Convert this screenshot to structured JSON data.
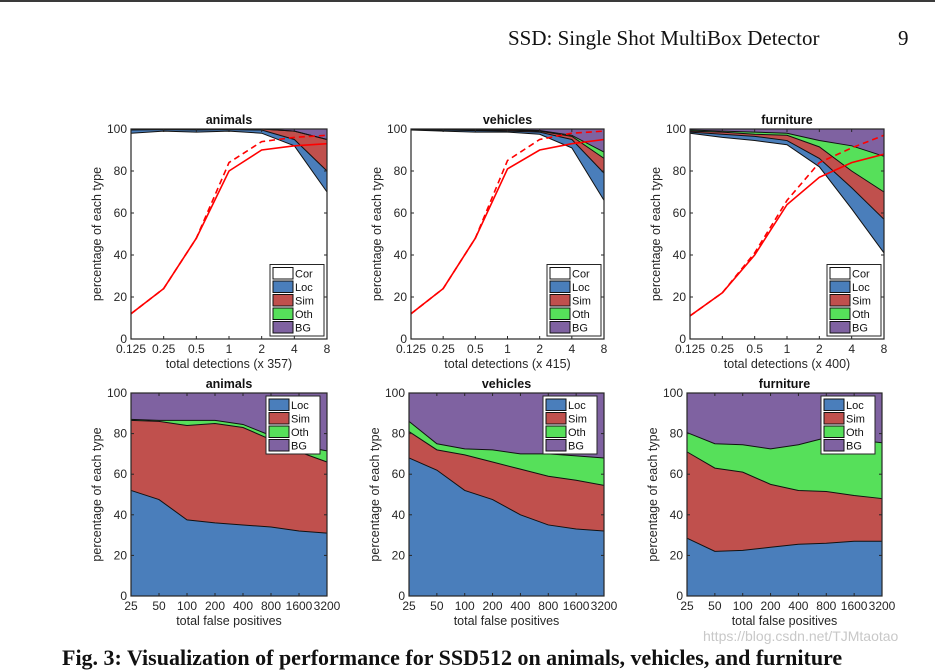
{
  "page": {
    "running_head": "SSD: Single Shot MultiBox Detector",
    "page_number": "9",
    "caption_fragment": "Fig. 3: Visualization of performance for SSD512 on animals, vehicles, and furniture",
    "watermark": "https://blog.csdn.net/TJMtaotao"
  },
  "colors": {
    "Cor": "#ffffff",
    "Loc": "#4a7ebb",
    "Sim": "#c0504d",
    "Oth": "#56e05a",
    "BG": "#7f62a1",
    "recall_line": "#ff0000"
  },
  "chart_data": [
    {
      "type": "area",
      "title": "animals",
      "xlabel": "total detections (x 357)",
      "ylabel": "percentage of each type",
      "x": [
        "0.125",
        "0.25",
        "0.5",
        "1",
        "2",
        "4",
        "8"
      ],
      "ylim": [
        0,
        100
      ],
      "yticks": [
        0,
        20,
        40,
        60,
        80,
        100
      ],
      "legend": [
        "Cor",
        "Loc",
        "Sim",
        "Oth",
        "BG"
      ],
      "legend_position": "bottom-right",
      "cumulative_boundaries": {
        "Cor": [
          98,
          99,
          98.5,
          99,
          98,
          92,
          70
        ],
        "Loc": [
          99.5,
          99.7,
          99.5,
          99.7,
          99.5,
          95,
          80
        ],
        "Sim": [
          100,
          100,
          100,
          100,
          100,
          99,
          95
        ],
        "Oth": [
          100,
          100,
          100,
          100,
          100,
          99,
          95
        ],
        "BG": [
          100,
          100,
          100,
          100,
          100,
          100,
          100
        ]
      },
      "recall_lines": [
        {
          "style": "solid",
          "values": [
            12,
            24,
            48,
            80,
            90,
            92,
            93
          ]
        },
        {
          "style": "dashed",
          "values": [
            12,
            24,
            48,
            84,
            94,
            96,
            97
          ]
        }
      ]
    },
    {
      "type": "area",
      "title": "vehicles",
      "xlabel": "total detections (x 415)",
      "ylabel": "percentage of each type",
      "x": [
        "0.125",
        "0.25",
        "0.5",
        "1",
        "2",
        "4",
        "8"
      ],
      "ylim": [
        0,
        100
      ],
      "yticks": [
        0,
        20,
        40,
        60,
        80,
        100
      ],
      "legend": [
        "Cor",
        "Loc",
        "Sim",
        "Oth",
        "BG"
      ],
      "legend_position": "bottom-right",
      "cumulative_boundaries": {
        "Cor": [
          99.5,
          99,
          98.5,
          98.5,
          97.5,
          91,
          66
        ],
        "Loc": [
          99.7,
          99.5,
          99.2,
          99,
          98.5,
          95,
          79
        ],
        "Sim": [
          99.8,
          99.7,
          99.5,
          99.5,
          99,
          96.5,
          86
        ],
        "Oth": [
          99.9,
          99.8,
          99.7,
          99.7,
          99.3,
          97,
          89
        ],
        "BG": [
          100,
          100,
          100,
          100,
          100,
          100,
          100
        ]
      },
      "recall_lines": [
        {
          "style": "solid",
          "values": [
            12,
            24,
            48,
            81,
            90,
            93,
            95
          ]
        },
        {
          "style": "dashed",
          "values": [
            12,
            24,
            48,
            85,
            95,
            98,
            99
          ]
        }
      ]
    },
    {
      "type": "area",
      "title": "furniture",
      "xlabel": "total detections (x 400)",
      "ylabel": "percentage of each type",
      "x": [
        "0.125",
        "0.25",
        "0.5",
        "1",
        "2",
        "4",
        "8"
      ],
      "ylim": [
        0,
        100
      ],
      "yticks": [
        0,
        20,
        40,
        60,
        80,
        100
      ],
      "legend": [
        "Cor",
        "Loc",
        "Sim",
        "Oth",
        "BG"
      ],
      "legend_position": "bottom-right",
      "cumulative_boundaries": {
        "Cor": [
          98,
          96,
          94.5,
          92.5,
          82,
          62,
          41
        ],
        "Loc": [
          98.5,
          97.5,
          96.5,
          94.5,
          86,
          72,
          57
        ],
        "Sim": [
          99,
          98.5,
          97.5,
          97,
          91.5,
          80,
          70
        ],
        "Oth": [
          99.5,
          99,
          98.5,
          98,
          94.5,
          92,
          87
        ],
        "BG": [
          100,
          100,
          100,
          100,
          100,
          100,
          100
        ]
      },
      "recall_lines": [
        {
          "style": "solid",
          "values": [
            11,
            22,
            40,
            64,
            77,
            84,
            88
          ]
        },
        {
          "style": "dashed",
          "values": [
            11,
            22,
            41,
            66,
            84,
            91,
            97
          ]
        }
      ]
    },
    {
      "type": "area",
      "title": "animals",
      "xlabel": "total false positives",
      "ylabel": "percentage of each type",
      "x": [
        "25",
        "50",
        "100",
        "200",
        "400",
        "800",
        "1600",
        "3200"
      ],
      "ylim": [
        0,
        100
      ],
      "yticks": [
        0,
        20,
        40,
        60,
        80,
        100
      ],
      "legend": [
        "Loc",
        "Sim",
        "Oth",
        "BG"
      ],
      "legend_position": "top-right",
      "cumulative_boundaries": {
        "Loc": [
          52,
          47.5,
          37.5,
          36,
          35,
          34,
          32,
          31
        ],
        "Sim": [
          86.5,
          86,
          84,
          85,
          83,
          77,
          71,
          66
        ],
        "Oth": [
          87,
          86.5,
          86.5,
          86.5,
          84.5,
          79,
          74,
          71.5
        ],
        "BG": [
          100,
          100,
          100,
          100,
          100,
          100,
          100,
          100
        ]
      }
    },
    {
      "type": "area",
      "title": "vehicles",
      "xlabel": "total false positives",
      "ylabel": "percentage of each type",
      "x": [
        "25",
        "50",
        "100",
        "200",
        "400",
        "800",
        "1600",
        "3200"
      ],
      "ylim": [
        0,
        100
      ],
      "yticks": [
        0,
        20,
        40,
        60,
        80,
        100
      ],
      "legend": [
        "Loc",
        "Sim",
        "Oth",
        "BG"
      ],
      "legend_position": "top-right",
      "cumulative_boundaries": {
        "Loc": [
          68,
          62,
          52,
          47.5,
          40,
          35,
          33,
          32
        ],
        "Sim": [
          81,
          72,
          69.5,
          66,
          62.5,
          59,
          57,
          54.5
        ],
        "Oth": [
          86,
          75,
          72.5,
          72,
          70,
          70,
          69,
          68
        ],
        "BG": [
          100,
          100,
          100,
          100,
          100,
          100,
          100,
          100
        ]
      }
    },
    {
      "type": "area",
      "title": "furniture",
      "xlabel": "total false positives",
      "ylabel": "percentage of each type",
      "x": [
        "25",
        "50",
        "100",
        "200",
        "400",
        "800",
        "1600",
        "3200"
      ],
      "ylim": [
        0,
        100
      ],
      "yticks": [
        0,
        20,
        40,
        60,
        80,
        100
      ],
      "legend": [
        "Loc",
        "Sim",
        "Oth",
        "BG"
      ],
      "legend_position": "top-right",
      "cumulative_boundaries": {
        "Loc": [
          28.5,
          22,
          22.5,
          24,
          25.5,
          26,
          27,
          27
        ],
        "Sim": [
          71,
          63,
          61,
          55,
          52,
          51.5,
          49.5,
          48
        ],
        "Oth": [
          80.5,
          75,
          74.5,
          72.5,
          74.5,
          78,
          77,
          75.5
        ],
        "BG": [
          100,
          100,
          100,
          100,
          100,
          100,
          100,
          100
        ]
      }
    }
  ]
}
